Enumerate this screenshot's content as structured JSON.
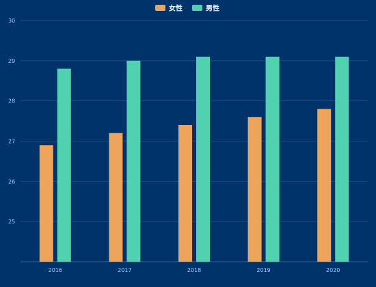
{
  "colors": {
    "background": "#00336a",
    "grid": "#1b4f86",
    "axis": "#2a6aa8",
    "tick_text": "#8fd3ff"
  },
  "legend": [
    {
      "name": "女性",
      "color": "#eda55b"
    },
    {
      "name": "男性",
      "color": "#50d2b1"
    }
  ],
  "chart_data": {
    "type": "bar",
    "title": "",
    "xlabel": "",
    "ylabel": "",
    "categories": [
      "2016",
      "2017",
      "2018",
      "2019",
      "2020"
    ],
    "series": [
      {
        "name": "女性",
        "color": "#eda55b",
        "values": [
          26.9,
          27.2,
          27.4,
          27.6,
          27.8
        ]
      },
      {
        "name": "男性",
        "color": "#50d2b1",
        "values": [
          28.8,
          29.0,
          29.1,
          29.1,
          29.1
        ]
      }
    ],
    "ylim": [
      24,
      30
    ],
    "yticks": [
      25,
      26,
      27,
      28,
      29,
      30
    ],
    "grid": true,
    "legend_position": "top-center"
  }
}
